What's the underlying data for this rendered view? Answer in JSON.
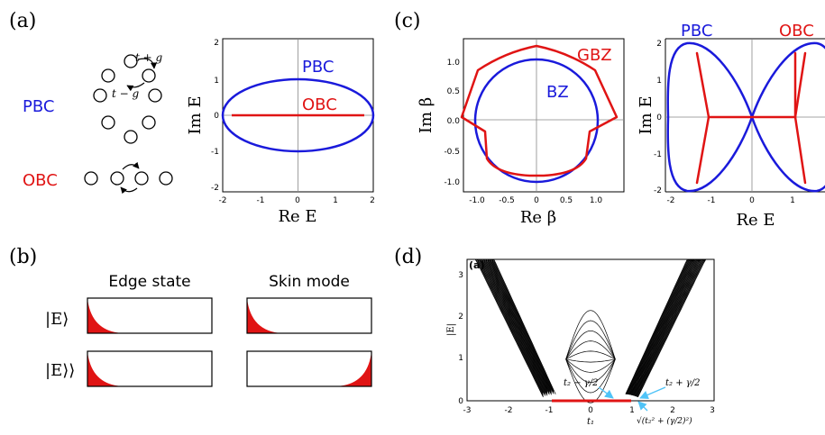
{
  "panels": {
    "a": {
      "letter": "(a)",
      "hop_top": "t + g",
      "hop_bottom": "t − g",
      "pbc_label": "PBC",
      "obc_label": "OBC",
      "plot_pbc_label": "PBC",
      "plot_obc_label": "OBC",
      "xlabel": "Re E",
      "ylabel": "Im E",
      "xticks": [
        "-2",
        "-1",
        "0",
        "1",
        "2"
      ],
      "yticks": [
        "2",
        "1",
        "0",
        "-1",
        "-2"
      ]
    },
    "b": {
      "letter": "(b)",
      "col1": "Edge state",
      "col2": "Skin mode",
      "row1": "|E⟩",
      "row2": "|E⟩⟩"
    },
    "c": {
      "letter": "(c)",
      "gbz_label": "GBZ",
      "bz_label": "BZ",
      "xlabel": "Re β",
      "ylabel": "Im β",
      "xticks": [
        "-1.0",
        "-0.5",
        "0",
        "0.5",
        "1.0"
      ],
      "yticks": [
        "1.0",
        "0.5",
        "0.0",
        "-0.5",
        "-1.0"
      ],
      "right_pbc_label": "PBC",
      "right_obc_label": "OBC",
      "right_xlabel": "Re E",
      "right_ylabel": "Im E",
      "right_xticks": [
        "-2",
        "-1",
        "0",
        "1"
      ],
      "right_yticks": [
        "2",
        "1",
        "0",
        "-1",
        "-2"
      ]
    },
    "d": {
      "letter": "(d)",
      "inner_letter": "(a)",
      "xlabel": "t₁",
      "ylabel": "|E|",
      "xticks": [
        "-3",
        "-2",
        "-1",
        "0",
        "1",
        "2",
        "3"
      ],
      "yticks": [
        "3",
        "2",
        "1",
        "0"
      ],
      "ann1": "t₂ − γ/2",
      "ann2": "t₂ + γ/2",
      "ann3": "√(t₂² + (γ/2)²)"
    }
  },
  "colors": {
    "blue": "#1a1adb",
    "red": "#e01414",
    "cyan": "#4fc3f7"
  }
}
